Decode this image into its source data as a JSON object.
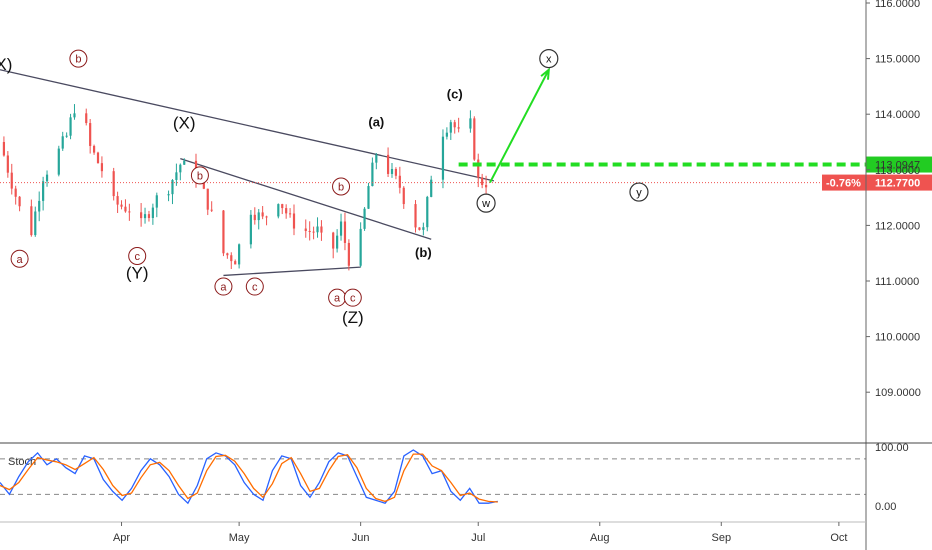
{
  "chart_data": [
    {
      "type": "candlestick",
      "title": "",
      "xlabel": "",
      "ylabel": "",
      "y_tick_labels": [
        "116.0000",
        "115.0000",
        "114.0000",
        "113.0000",
        "112.0000",
        "111.0000",
        "110.0000",
        "109.0000"
      ],
      "ylim": [
        108.0,
        116.0
      ],
      "x_tick_labels": [
        "Apr",
        "May",
        "Jun",
        "Jul",
        "Aug",
        "Sep",
        "Oct"
      ],
      "xlim": [
        "2020-03-01",
        "2020-10-20"
      ],
      "price_path": [
        [
          "2020-03-01",
          113.5
        ],
        [
          "2020-03-06",
          112.3
        ],
        [
          "2020-03-09",
          111.9
        ],
        [
          "2020-03-12",
          112.9
        ],
        [
          "2020-03-15",
          113.2
        ],
        [
          "2020-03-18",
          113.6
        ],
        [
          "2020-03-21",
          114.4
        ],
        [
          "2020-03-24",
          113.4
        ],
        [
          "2020-03-27",
          113.0
        ],
        [
          "2020-03-30",
          112.4
        ],
        [
          "2020-04-03",
          112.3
        ],
        [
          "2020-04-06",
          112.0
        ],
        [
          "2020-04-09",
          112.4
        ],
        [
          "2020-04-13",
          112.7
        ],
        [
          "2020-04-16",
          113.1
        ],
        [
          "2020-04-20",
          112.9
        ],
        [
          "2020-04-23",
          112.4
        ],
        [
          "2020-04-27",
          111.5
        ],
        [
          "2020-04-30",
          111.4
        ],
        [
          "2020-05-04",
          112.3
        ],
        [
          "2020-05-07",
          112.1
        ],
        [
          "2020-05-11",
          112.5
        ],
        [
          "2020-05-14",
          112.1
        ],
        [
          "2020-05-18",
          111.9
        ],
        [
          "2020-05-21",
          111.9
        ],
        [
          "2020-05-24",
          111.4
        ],
        [
          "2020-05-27",
          112.0
        ],
        [
          "2020-05-29",
          111.4
        ],
        [
          "2020-06-01",
          111.8
        ],
        [
          "2020-06-03",
          112.7
        ],
        [
          "2020-06-05",
          113.3
        ],
        [
          "2020-06-08",
          113.0
        ],
        [
          "2020-06-11",
          112.7
        ],
        [
          "2020-06-14",
          112.1
        ],
        [
          "2020-06-17",
          111.9
        ],
        [
          "2020-06-19",
          112.9
        ],
        [
          "2020-06-22",
          113.7
        ],
        [
          "2020-06-24",
          113.9
        ],
        [
          "2020-06-27",
          113.5
        ],
        [
          "2020-06-29",
          113.8
        ],
        [
          "2020-07-01",
          112.8
        ],
        [
          "2020-07-04",
          112.77
        ]
      ],
      "last_price": "112.7700",
      "change_percent": "-0.76%",
      "level_label": "113.0947",
      "level_value": 113.0947,
      "projection": {
        "from": [
          "2020-07-04",
          112.77
        ],
        "to": [
          "2020-07-19",
          114.8
        ]
      },
      "trendlines": [
        {
          "from": [
            "2020-03-01",
            114.8
          ],
          "to": [
            "2020-07-05",
            112.8
          ]
        },
        {
          "from": [
            "2020-04-16",
            113.2
          ],
          "to": [
            "2020-06-19",
            111.75
          ]
        },
        {
          "from": [
            "2020-04-27",
            111.1
          ],
          "to": [
            "2020-06-01",
            111.25
          ]
        }
      ],
      "wave_labels": [
        {
          "text": "X)",
          "x": "2020-03-02",
          "y": 114.9,
          "style": "big"
        },
        {
          "text": "(X)",
          "x": "2020-04-17",
          "y": 113.85,
          "style": "big"
        },
        {
          "text": "(Y)",
          "x": "2020-04-05",
          "y": 111.15,
          "style": "big"
        },
        {
          "text": "(Z)",
          "x": "2020-05-30",
          "y": 110.35,
          "style": "big"
        },
        {
          "text": "(a)",
          "x": "2020-06-05",
          "y": 113.85,
          "style": "bold"
        },
        {
          "text": "(b)",
          "x": "2020-06-17",
          "y": 111.5,
          "style": "bold"
        },
        {
          "text": "(c)",
          "x": "2020-06-25",
          "y": 114.35,
          "style": "bold"
        },
        {
          "text": "b",
          "x": "2020-03-21",
          "y": 115.0,
          "style": "red-circle"
        },
        {
          "text": "a",
          "x": "2020-03-06",
          "y": 111.4,
          "style": "red-circle"
        },
        {
          "text": "c",
          "x": "2020-04-05",
          "y": 111.45,
          "style": "red-circle"
        },
        {
          "text": "b",
          "x": "2020-04-21",
          "y": 112.9,
          "style": "red-circle"
        },
        {
          "text": "a",
          "x": "2020-04-27",
          "y": 110.9,
          "style": "red-circle"
        },
        {
          "text": "c",
          "x": "2020-05-05",
          "y": 110.9,
          "style": "red-circle"
        },
        {
          "text": "b",
          "x": "2020-05-27",
          "y": 112.7,
          "style": "red-circle"
        },
        {
          "text": "a",
          "x": "2020-05-26",
          "y": 110.7,
          "style": "red-circle"
        },
        {
          "text": "c",
          "x": "2020-05-30",
          "y": 110.7,
          "style": "red-circle"
        },
        {
          "text": "w",
          "x": "2020-07-03",
          "y": 112.4,
          "style": "gray-circle"
        },
        {
          "text": "x",
          "x": "2020-07-19",
          "y": 115.0,
          "style": "gray-circle"
        },
        {
          "text": "y",
          "x": "2020-08-11",
          "y": 112.6,
          "style": "gray-circle"
        }
      ]
    },
    {
      "type": "line",
      "title": "Stoch",
      "y_tick_labels": [
        "100.00",
        "0.00"
      ],
      "ylim": [
        -20,
        100
      ],
      "levels": [
        80,
        20
      ],
      "series": [
        {
          "color": "#2962ff",
          "values": [
            40,
            20,
            50,
            75,
            90,
            70,
            80,
            65,
            55,
            85,
            80,
            45,
            25,
            10,
            30,
            60,
            80,
            70,
            50,
            20,
            5,
            35,
            80,
            90,
            85,
            70,
            40,
            20,
            10,
            60,
            85,
            80,
            35,
            15,
            40,
            75,
            90,
            85,
            50,
            15,
            10,
            5,
            25,
            85,
            95,
            85,
            55,
            60,
            25,
            10,
            30,
            5,
            5,
            8
          ]
        },
        {
          "color": "#ff6d00",
          "values": [
            35,
            28,
            40,
            62,
            82,
            78,
            75,
            70,
            62,
            72,
            82,
            62,
            35,
            18,
            22,
            48,
            70,
            74,
            60,
            35,
            13,
            22,
            60,
            84,
            86,
            76,
            55,
            30,
            15,
            38,
            72,
            82,
            55,
            25,
            30,
            60,
            84,
            87,
            65,
            30,
            13,
            8,
            15,
            60,
            88,
            88,
            68,
            60,
            40,
            18,
            22,
            12,
            8,
            7
          ]
        }
      ]
    }
  ]
}
